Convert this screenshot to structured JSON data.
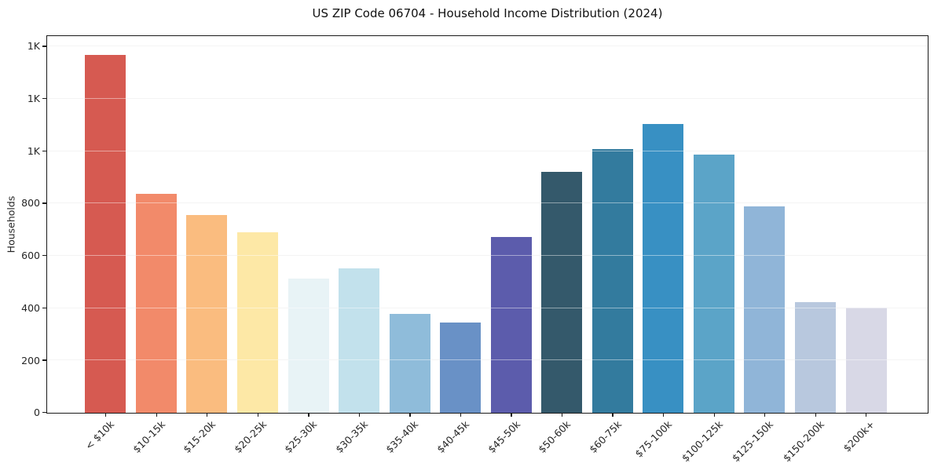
{
  "figure": {
    "background": "#ffffff",
    "axis_color": "#1a1a1a",
    "grid_color": "#ececec",
    "text_color": "#262626",
    "title_color": "#111111"
  },
  "chart_data": {
    "type": "bar",
    "title": "US ZIP Code 06704 - Household Income Distribution (2024)",
    "xlabel": "",
    "ylabel": "Households",
    "categories": [
      "< $10k",
      "$10-15k",
      "$15-20k",
      "$20-25k",
      "$25-30k",
      "$30-35k",
      "$35-40k",
      "$40-45k",
      "$45-50k",
      "$50-60k",
      "$60-75k",
      "$75-100k",
      "$100-125k",
      "$125-150k",
      "$150-200k",
      "$200k+"
    ],
    "values": [
      1368,
      838,
      757,
      690,
      512,
      553,
      378,
      345,
      673,
      922,
      1008,
      1105,
      986,
      790,
      423,
      401
    ],
    "bar_colors": [
      "#d65a51",
      "#f28a6a",
      "#fabc7f",
      "#fde8a6",
      "#e8f3f6",
      "#c2e1ec",
      "#8fbcda",
      "#6991c6",
      "#5c5cac",
      "#34596b",
      "#337b9e",
      "#3890c3",
      "#5ba4c8",
      "#90b5d8",
      "#b8c8de",
      "#d8d8e6"
    ],
    "ylim": [
      0,
      1438
    ],
    "yticks": {
      "values": [
        0,
        200,
        400,
        600,
        800,
        1000,
        1200,
        1400
      ],
      "labels": [
        "0",
        "200",
        "400",
        "600",
        "800",
        "1K",
        "1K",
        "1K"
      ]
    },
    "xtick_rotation_deg": 45,
    "grid": "horizontal",
    "legend": "none"
  }
}
